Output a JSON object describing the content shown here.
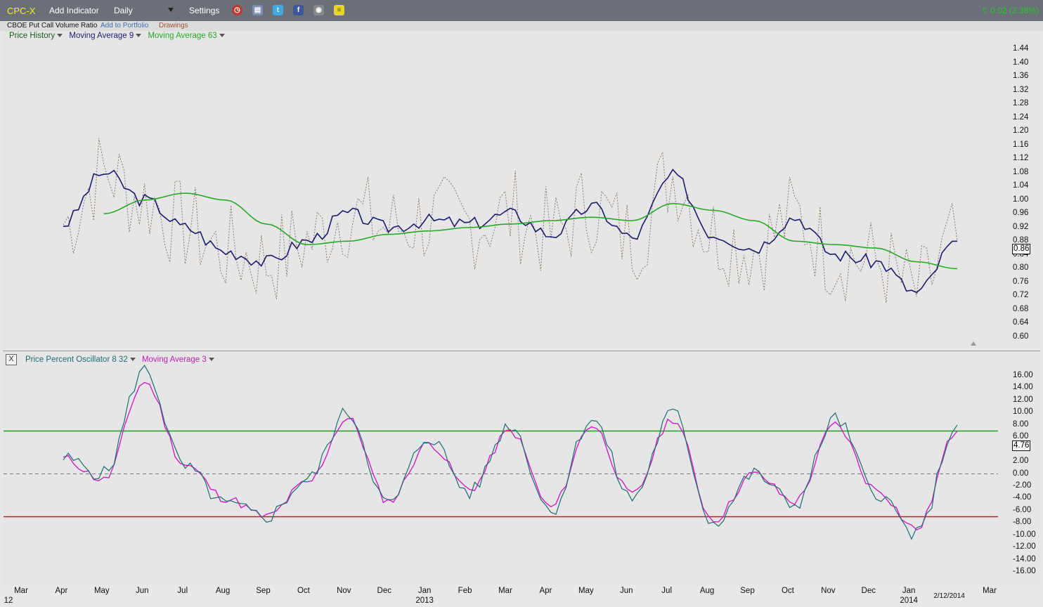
{
  "toolbar": {
    "ticker": "CPC-X",
    "add_indicator": "Add Indicator",
    "period": "Daily",
    "settings": "Settings",
    "change": "0.02 (2.38%)",
    "icons": [
      "alarm-clock-icon",
      "book-icon",
      "twitter-icon",
      "facebook-icon",
      "camera-icon",
      "note-icon"
    ]
  },
  "subbar": {
    "name": "CBOE Put Call Volume Ratio",
    "add_portfolio": "Add to Portfolio",
    "drawings": "Drawings"
  },
  "colors": {
    "price": "#8a7a6a",
    "ma9": "#1c1c6e",
    "ma63": "#28a828",
    "ppo": "#1e6e6e",
    "ppo_ma": "#d020c8",
    "upper_line": "#20a020",
    "lower_line": "#d01818",
    "zero_line": "#777777"
  },
  "chart_data": [
    {
      "type": "line",
      "legend": [
        "Price History",
        "Moving Average 9",
        "Moving Average 63"
      ],
      "y_ticks": [
        "1.44",
        "1.40",
        "1.36",
        "1.32",
        "1.28",
        "1.24",
        "1.20",
        "1.16",
        "1.12",
        "1.08",
        "1.04",
        "1.00",
        "0.96",
        "0.92",
        "0.88",
        "0.84",
        "0.80",
        "0.76",
        "0.72",
        "0.68",
        "0.64",
        "0.60"
      ],
      "ylim": [
        0.58,
        1.46
      ],
      "last_value": "0.86",
      "x": [
        "2012-04",
        "2012-05",
        "2012-06",
        "2012-07",
        "2012-08",
        "2012-09",
        "2012-10",
        "2012-11",
        "2012-12",
        "2013-01",
        "2013-02",
        "2013-03",
        "2013-04",
        "2013-05",
        "2013-06",
        "2013-07",
        "2013-08",
        "2013-09",
        "2013-10",
        "2013-11",
        "2013-12",
        "2014-01",
        "2014-02"
      ],
      "series": [
        {
          "name": "Moving Average 9",
          "values": [
            0.93,
            1.08,
            1.0,
            0.92,
            0.85,
            0.82,
            0.88,
            0.96,
            0.92,
            0.94,
            0.93,
            0.96,
            0.9,
            0.98,
            0.89,
            1.07,
            0.9,
            0.86,
            0.95,
            0.84,
            0.82,
            0.73,
            0.88
          ]
        },
        {
          "name": "Moving Average 63",
          "values": [
            null,
            0.96,
            1.0,
            1.02,
            1.0,
            0.93,
            0.87,
            0.88,
            0.9,
            0.91,
            0.92,
            0.93,
            0.94,
            0.95,
            0.94,
            0.99,
            0.97,
            0.94,
            0.88,
            0.87,
            0.86,
            0.82,
            0.8
          ]
        }
      ]
    },
    {
      "type": "line",
      "legend": [
        "Price Percent Oscillator 8 32",
        "Moving Average 3"
      ],
      "y_ticks": [
        "16.00",
        "14.00",
        "12.00",
        "10.00",
        "8.00",
        "6.00",
        "2.00",
        "0.00",
        "-2.00",
        "-4.00",
        "-6.00",
        "-8.00",
        "-10.00",
        "-12.00",
        "-14.00",
        "-16.00"
      ],
      "ylim": [
        -17,
        17
      ],
      "upper_band": 7,
      "lower_band": -7,
      "last_value": "4.76",
      "x": [
        "2012-04",
        "2012-05",
        "2012-06",
        "2012-07",
        "2012-08",
        "2012-09",
        "2012-10",
        "2012-11",
        "2012-12",
        "2013-01",
        "2013-02",
        "2013-03",
        "2013-04",
        "2013-05",
        "2013-06",
        "2013-07",
        "2013-08",
        "2013-09",
        "2013-10",
        "2013-11",
        "2013-12",
        "2014-01",
        "2014-02"
      ],
      "series": [
        {
          "name": "Price Percent Oscillator 8 32",
          "values": [
            2.5,
            0,
            17,
            1,
            -5,
            -7,
            -1,
            10,
            -5,
            6,
            -3,
            8,
            -6,
            9,
            -4,
            10,
            -8,
            0,
            -5,
            9,
            -3,
            -10,
            8
          ]
        },
        {
          "name": "Moving Average 3",
          "values": [
            2.5,
            -1,
            15,
            1.5,
            -4,
            -7,
            -1.5,
            9,
            -4.5,
            5,
            -2.5,
            7,
            -5.5,
            8,
            -3.5,
            9,
            -7.5,
            0,
            -4.5,
            8,
            -2.5,
            -9,
            7
          ]
        }
      ]
    }
  ],
  "x_axis": {
    "start_label": "12",
    "months": [
      "Mar",
      "Apr",
      "May",
      "Jun",
      "Jul",
      "Aug",
      "Sep",
      "Oct",
      "Nov",
      "Dec",
      "Jan",
      "Feb",
      "Mar",
      "Apr",
      "May",
      "Jun",
      "Jul",
      "Aug",
      "Sep",
      "Oct",
      "Nov",
      "Dec",
      "Jan",
      "2/12/2014",
      "Mar"
    ],
    "years": [
      "2013",
      "2014"
    ]
  }
}
